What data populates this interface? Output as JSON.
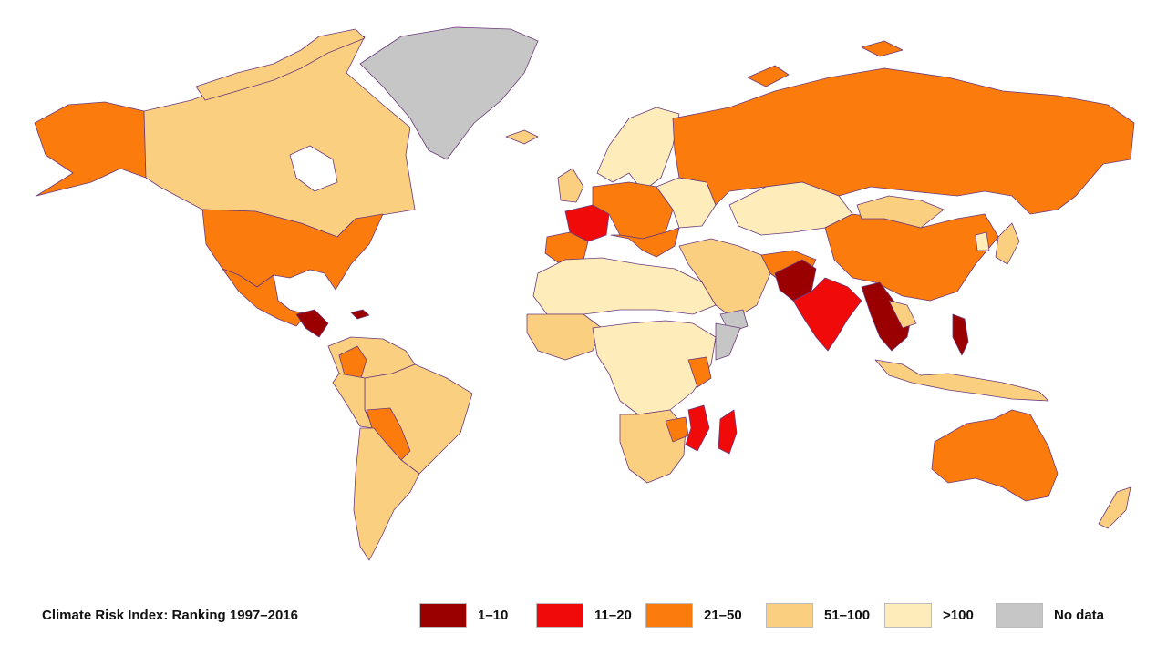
{
  "legend": {
    "title": "Climate Risk Index: Ranking 1997–2016",
    "items": [
      {
        "label": "1–10",
        "color": "#9b0000"
      },
      {
        "label": "11–20",
        "color": "#f00a0a"
      },
      {
        "label": "21–50",
        "color": "#fb7c0d"
      },
      {
        "label": "51–100",
        "color": "#fbcf80"
      },
      {
        "label": ">100",
        "color": "#feedba"
      },
      {
        "label": "No data",
        "color": "#c6c6c6"
      }
    ]
  },
  "colors": {
    "outline": "#6b3b7a",
    "background": "#ffffff"
  }
}
